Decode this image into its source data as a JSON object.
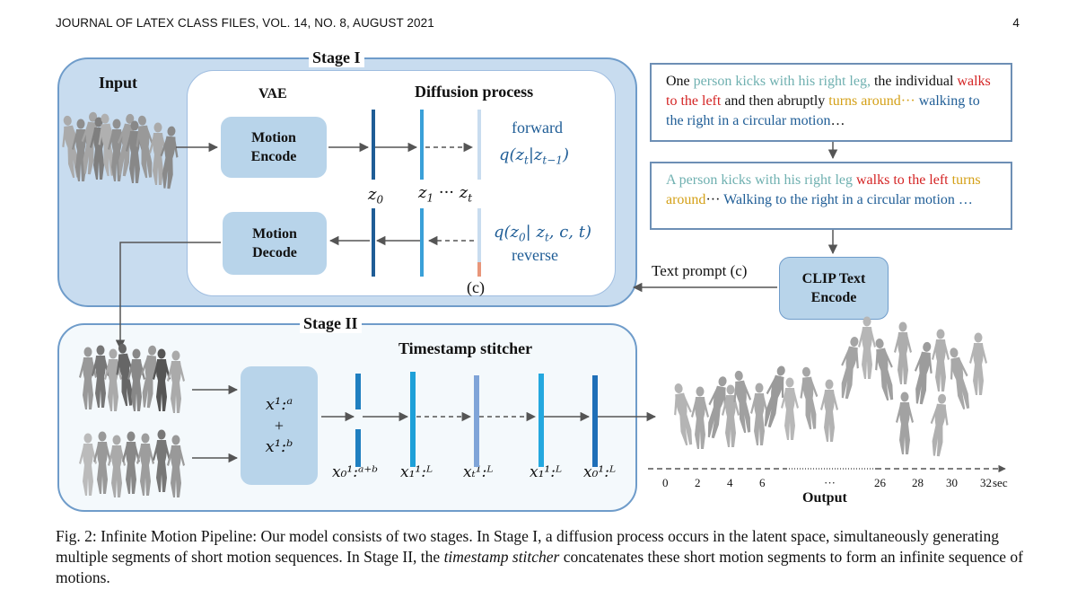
{
  "header": {
    "journal": "JOURNAL OF LATEX CLASS FILES, VOL. 14, NO. 8, AUGUST 2021",
    "page": "4"
  },
  "stage1": {
    "label": "Stage I",
    "input": "Input",
    "vae": "VAE",
    "diffusion": "Diffusion process",
    "motion_encode": [
      "Motion",
      "Encode"
    ],
    "motion_decode": [
      "Motion",
      "Decode"
    ],
    "forward": "forward",
    "forward_eq": "q(z",
    "reverse": "reverse",
    "z0": "z",
    "z0_sub": "0",
    "z1": "z",
    "z1_sub": "1",
    "dots": "···",
    "zt": "z",
    "zt_sub": "t",
    "cond": "(c)"
  },
  "prompts": {
    "prompt1": [
      {
        "t": "One ",
        "c": "black"
      },
      {
        "t": "person kicks with his right leg,",
        "c": "teal"
      },
      {
        "t": " the individual ",
        "c": "black"
      },
      {
        "t": "walks to the left",
        "c": "red"
      },
      {
        "t": " and then abruptly ",
        "c": "black"
      },
      {
        "t": "turns around",
        "c": "gold"
      },
      {
        "t": "···",
        "c": "gold"
      },
      {
        "t": " walking to the right in a circular motion",
        "c": "blue"
      },
      {
        "t": "…",
        "c": "black"
      }
    ],
    "prompt2": [
      {
        "t": "A person kicks with his right leg ",
        "c": "teal"
      },
      {
        "t": "walks to the left",
        "c": "red"
      },
      {
        "t": " turns around",
        "c": "gold"
      },
      {
        "t": "··· ",
        "c": "black"
      },
      {
        "t": "Walking to the right in a circular motion …",
        "c": "blue"
      }
    ],
    "text_prompt": "Text prompt (c)",
    "clip": [
      "CLIP Text",
      "Encode"
    ]
  },
  "stage2": {
    "label": "Stage II",
    "stitcher": "Timestamp stitcher",
    "labels": [
      "x₀¹:ᵃ⁺ᵇ",
      "x₁¹:ᴸ",
      "xₜ¹:ᴸ",
      "x₁¹:ᴸ",
      "x₀¹:ᴸ"
    ],
    "box_top": "x¹:ᵃ",
    "box_plus": "+",
    "box_bottom": "x¹:ᵇ"
  },
  "output": {
    "ticks": [
      "0",
      "2",
      "4",
      "6",
      "26",
      "28",
      "30",
      "32"
    ],
    "unit": "sec",
    "dots": "···",
    "label": "Output"
  },
  "caption": {
    "p1": "Fig. 2: Infinite Motion Pipeline: Our model consists of two stages. In Stage I, a diffusion process occurs in the latent space, simultaneously generating multiple segments of short motion sequences. In Stage II, the ",
    "italic": "timestamp stitcher",
    "p2": " concatenates these short motion segments to form an infinite sequence of motions."
  },
  "colors": {
    "teal": "#6fb0b0",
    "red": "#d42424",
    "gold": "#d4a017",
    "blue": "#1f5d96",
    "box": "#b8d4ea",
    "stage": "#c8dcef"
  }
}
